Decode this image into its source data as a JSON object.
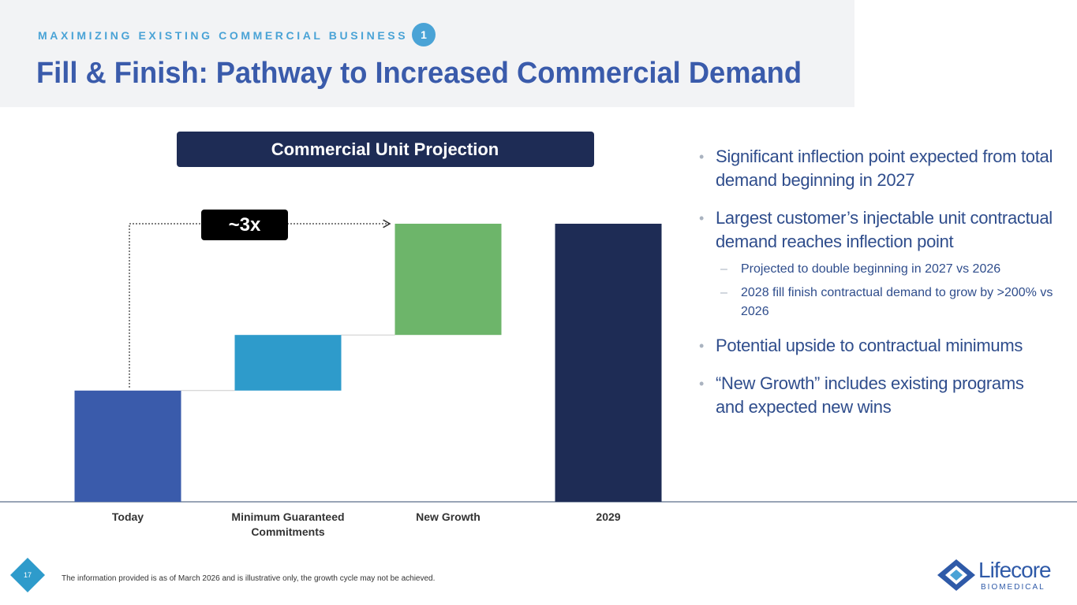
{
  "header": {
    "eyebrow": "MAXIMIZING EXISTING COMMERCIAL BUSINESS",
    "badge": "1",
    "title": "Fill & Finish: Pathway to Increased Commercial Demand"
  },
  "chart_data": {
    "type": "waterfall",
    "title": "Commercial Unit Projection",
    "annotation": "~3x",
    "categories": [
      "Today",
      "Minimum Guaranteed Commitments",
      "New Growth",
      "2029"
    ],
    "values": [
      1.0,
      0.5,
      1.0,
      2.5
    ],
    "measures": [
      "absolute",
      "relative",
      "relative",
      "total"
    ],
    "colors": [
      "#3a5bab",
      "#2e9bcb",
      "#6db56a",
      "#1e2c55"
    ],
    "ylim": [
      0,
      2.5
    ]
  },
  "bullets": [
    {
      "text": "Significant inflection point expected from total demand beginning in 2027",
      "sub": []
    },
    {
      "text": "Largest customer’s injectable unit contractual demand reaches inflection point",
      "sub": [
        "Projected to double beginning in 2027 vs 2026",
        "2028 fill finish contractual demand to grow by >200% vs 2026"
      ]
    },
    {
      "text": "Potential upside to contractual minimums",
      "sub": []
    },
    {
      "text": "“New Growth” includes existing programs and expected new wins",
      "sub": []
    }
  ],
  "footer": {
    "page": "17",
    "note": "The information provided is as of March 2026 and is illustrative only, the growth cycle may not be achieved.",
    "logo": "Lifecore",
    "logo_sub": "BIOMEDICAL"
  }
}
